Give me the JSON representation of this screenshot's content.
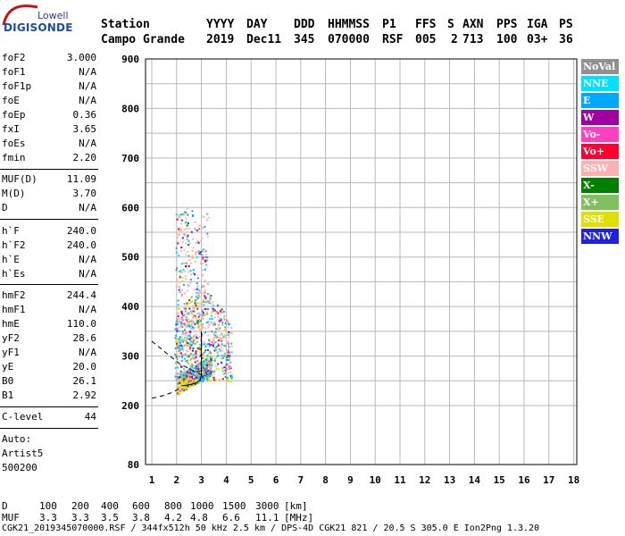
{
  "logo": {
    "top": "Lowell",
    "main": "DIGISONDE"
  },
  "header": {
    "labels": [
      "Station",
      "YYYY",
      "DAY",
      "DDD",
      "HHMMSS",
      "P1",
      "FFS",
      "S",
      "AXN",
      "PPS",
      "IGA",
      "PS"
    ],
    "values": [
      "Campo Grande",
      "2019",
      "Dec11",
      "345",
      "070000",
      "RSF",
      "005",
      "2",
      "713",
      "100",
      "03+",
      "36"
    ]
  },
  "sidebar": {
    "group1": [
      {
        "k": "foF2",
        "v": "3.000"
      },
      {
        "k": "foF1",
        "v": "N/A"
      },
      {
        "k": "foF1p",
        "v": "N/A"
      },
      {
        "k": "foE",
        "v": "N/A"
      },
      {
        "k": "foEp",
        "v": "0.36"
      },
      {
        "k": "fxI",
        "v": "3.65"
      },
      {
        "k": "foEs",
        "v": "N/A"
      },
      {
        "k": "fmin",
        "v": "2.20"
      }
    ],
    "group2": [
      {
        "k": "MUF(D)",
        "v": "11.09"
      },
      {
        "k": "M(D)",
        "v": "3.70"
      },
      {
        "k": "D",
        "v": "N/A"
      }
    ],
    "group3": [
      {
        "k": "h`F",
        "v": "240.0"
      },
      {
        "k": "h`F2",
        "v": "240.0"
      },
      {
        "k": "h`E",
        "v": "N/A"
      },
      {
        "k": "h`Es",
        "v": "N/A"
      }
    ],
    "group4": [
      {
        "k": "hmF2",
        "v": "244.4"
      },
      {
        "k": "hmF1",
        "v": "N/A"
      },
      {
        "k": "hmE",
        "v": "110.0"
      },
      {
        "k": "yF2",
        "v": "28.6"
      },
      {
        "k": "yF1",
        "v": "N/A"
      },
      {
        "k": "yE",
        "v": "20.0"
      },
      {
        "k": "B0",
        "v": "26.1"
      },
      {
        "k": "B1",
        "v": "2.92"
      }
    ],
    "group5": [
      {
        "k": "C-level",
        "v": "44"
      }
    ],
    "footer": [
      "Auto:",
      "Artist5",
      "500200"
    ]
  },
  "legend": [
    {
      "label": "NoVal",
      "color": "#909090",
      "text": "#ffffff"
    },
    {
      "label": "NNE",
      "color": "#00e0ff",
      "text": "#ffffff"
    },
    {
      "label": "E",
      "color": "#00a8ff",
      "text": "#ffffff"
    },
    {
      "label": "W",
      "color": "#a000a0",
      "text": "#ffffff"
    },
    {
      "label": "Vo-",
      "color": "#ff40c0",
      "text": "#ffffff"
    },
    {
      "label": "Vo+",
      "color": "#ff0030",
      "text": "#ffffff"
    },
    {
      "label": "SSW",
      "color": "#ffb0b0",
      "text": "#ffffff"
    },
    {
      "label": "X-",
      "color": "#008000",
      "text": "#ffffff"
    },
    {
      "label": "X+",
      "color": "#80c060",
      "text": "#ffffff"
    },
    {
      "label": "SSE",
      "color": "#e0e000",
      "text": "#ffffff"
    },
    {
      "label": "NNW",
      "color": "#2020e0",
      "text": "#ffffff"
    }
  ],
  "bottom": {
    "d_label": "D",
    "d_values": [
      "100",
      "200",
      "400",
      "600",
      "800",
      "1000",
      "1500",
      "3000",
      "[km]"
    ],
    "muf_label": "MUF",
    "muf_values": [
      "3.3",
      "3.3",
      "3.5",
      "3.8",
      "4.2",
      "4.8",
      "6.6",
      "11.1",
      "[MHz]"
    ],
    "footer": "CGK21_2019345070000.RSF / 344fx512h 50 kHz 2.5 km / DPS-4D CGK21 821 / 20.5 S 305.0 E Ion2Png 1.3.20"
  },
  "chart_data": {
    "type": "scatter",
    "x_ticks": [
      1,
      2,
      3,
      4,
      5,
      6,
      7,
      8,
      9,
      10,
      11,
      12,
      13,
      14,
      15,
      16,
      17,
      18
    ],
    "y_ticks": [
      80,
      200,
      300,
      400,
      500,
      600,
      700,
      800,
      900
    ],
    "xlim": [
      1,
      18
    ],
    "ylim": [
      80,
      900
    ],
    "grid": true,
    "trace_points": [
      [
        2.2,
        240
      ],
      [
        2.4,
        241
      ],
      [
        2.6,
        243
      ],
      [
        2.8,
        246
      ],
      [
        2.95,
        252
      ],
      [
        3.0,
        262
      ],
      [
        3.0,
        300
      ],
      [
        3.0,
        350
      ]
    ]
  }
}
